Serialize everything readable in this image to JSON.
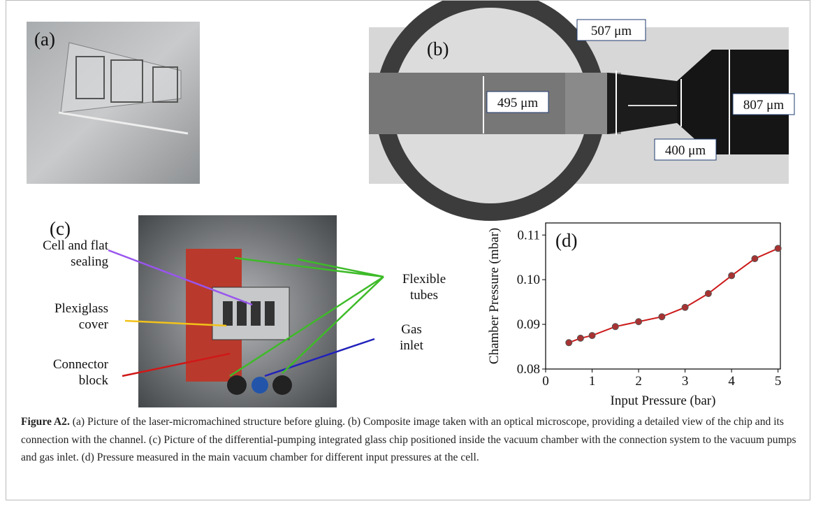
{
  "figure": {
    "panel_a": {
      "label": "(a)"
    },
    "panel_b": {
      "label": "(b)",
      "annotations": [
        "507 μm",
        "495 μm",
        "400 μm",
        "807 μm"
      ]
    },
    "panel_c": {
      "label": "(c)",
      "annotations": [
        {
          "lines": [
            "Cell and flat",
            "sealing"
          ]
        },
        {
          "lines": [
            "Plexiglass",
            "cover"
          ]
        },
        {
          "lines": [
            "Connector",
            "block"
          ]
        },
        {
          "lines": [
            "Flexible",
            "tubes"
          ]
        },
        {
          "lines": [
            "Gas",
            "inlet"
          ]
        }
      ]
    },
    "caption": {
      "label": "Figure A2.",
      "text": "(a) Picture of the laser-micromachined structure before gluing. (b) Composite image taken with an optical microscope, providing a detailed view of the chip and its connection with the channel. (c) Picture of the differential-pumping integrated glass chip positioned inside the vacuum chamber with the connection system to the vacuum pumps and gas inlet. (d) Pressure measured in the main vacuum chamber for different input pressures at the cell."
    }
  },
  "chart_data": {
    "type": "line",
    "annotation": "(d)",
    "x_label": "Input Pressure (bar)",
    "y_label": "Chamber Pressure (mbar)",
    "x": [
      0.5,
      0.75,
      1,
      1.5,
      2,
      2.5,
      3,
      3.5,
      4,
      4.5,
      5
    ],
    "series": [
      {
        "color": "#cc1a1a",
        "marker_color": "#a83232",
        "values": [
          0.0859,
          0.0869,
          0.0875,
          0.0895,
          0.0906,
          0.0917,
          0.0938,
          0.0969,
          0.1009,
          0.1047,
          0.107
        ]
      }
    ],
    "xlim": [
      0,
      5.05
    ],
    "ylim": [
      0.08,
      0.1127
    ],
    "xticks": [
      0,
      1,
      2,
      3,
      4,
      5
    ],
    "yticks": [
      {
        "value": 0.08,
        "label": "0.08"
      },
      {
        "value": 0.09,
        "label": "0.09"
      },
      {
        "value": 0.1,
        "label": "0.10"
      },
      {
        "value": 0.11,
        "label": "0.11"
      }
    ]
  }
}
